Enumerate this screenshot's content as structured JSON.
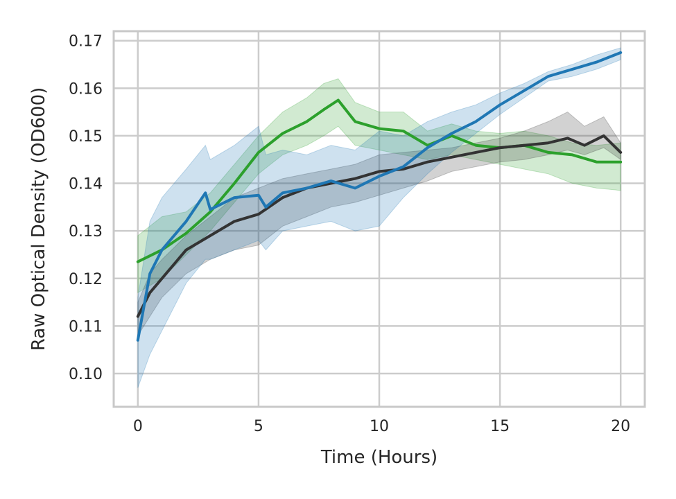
{
  "chart_data": {
    "type": "line",
    "title": "",
    "xlabel": "Time (Hours)",
    "ylabel": "Raw Optical Density (OD600)",
    "xlim": [
      -1,
      21
    ],
    "ylim": [
      0.093,
      0.172
    ],
    "xticks": [
      0,
      5,
      10,
      15,
      20
    ],
    "xtick_labels": [
      "0",
      "5",
      "10",
      "15",
      "20"
    ],
    "yticks": [
      0.1,
      0.11,
      0.12,
      0.13,
      0.14,
      0.15,
      0.16,
      0.17
    ],
    "ytick_labels": [
      "0.10",
      "0.11",
      "0.12",
      "0.13",
      "0.14",
      "0.15",
      "0.16",
      "0.17"
    ],
    "grid": true,
    "legend": "none",
    "series": [
      {
        "color": "#2ca02c",
        "x": [
          0,
          1,
          2,
          3,
          4,
          5,
          6,
          7,
          7.7,
          8.3,
          9,
          10,
          11,
          12,
          13,
          14,
          15,
          16,
          17,
          18,
          19,
          20
        ],
        "y": [
          0.1235,
          0.126,
          0.1295,
          0.134,
          0.14,
          0.1465,
          0.1505,
          0.153,
          0.1555,
          0.1575,
          0.153,
          0.1515,
          0.151,
          0.148,
          0.15,
          0.148,
          0.1475,
          0.148,
          0.1465,
          0.146,
          0.1445,
          0.1445
        ],
        "lower": [
          0.117,
          0.12,
          0.125,
          0.13,
          0.136,
          0.142,
          0.146,
          0.148,
          0.15,
          0.152,
          0.148,
          0.147,
          0.146,
          0.145,
          0.146,
          0.145,
          0.144,
          0.143,
          0.142,
          0.14,
          0.139,
          0.1385
        ],
        "upper": [
          0.129,
          0.133,
          0.134,
          0.138,
          0.144,
          0.15,
          0.155,
          0.158,
          0.161,
          0.162,
          0.157,
          0.155,
          0.155,
          0.151,
          0.1525,
          0.151,
          0.1505,
          0.151,
          0.15,
          0.1485,
          0.148,
          0.1485
        ]
      },
      {
        "color": "#333333",
        "x": [
          0,
          0.5,
          1,
          2,
          3,
          4,
          5,
          6,
          7,
          8,
          9,
          10,
          11,
          12,
          13,
          14,
          15,
          16,
          17,
          17.8,
          18.5,
          19.3,
          20
        ],
        "y": [
          0.112,
          0.117,
          0.12,
          0.126,
          0.129,
          0.132,
          0.1335,
          0.137,
          0.139,
          0.14,
          0.141,
          0.1425,
          0.143,
          0.1445,
          0.1455,
          0.1465,
          0.1475,
          0.148,
          0.1485,
          0.1495,
          0.148,
          0.15,
          0.1465
        ],
        "lower": [
          0.108,
          0.112,
          0.116,
          0.121,
          0.124,
          0.126,
          0.127,
          0.131,
          0.133,
          0.135,
          0.136,
          0.1375,
          0.139,
          0.1405,
          0.1425,
          0.1435,
          0.1445,
          0.145,
          0.146,
          0.147,
          0.146,
          0.1475,
          0.145
        ],
        "upper": [
          0.115,
          0.121,
          0.124,
          0.129,
          0.133,
          0.137,
          0.139,
          0.141,
          0.142,
          0.143,
          0.144,
          0.146,
          0.1465,
          0.147,
          0.1475,
          0.1485,
          0.1495,
          0.151,
          0.153,
          0.155,
          0.152,
          0.154,
          0.1485
        ]
      },
      {
        "color": "#1f77b4",
        "x": [
          0,
          0.5,
          1,
          2,
          2.8,
          3,
          4,
          5,
          5.3,
          6,
          7,
          8,
          9,
          10,
          11,
          12,
          13,
          14,
          15,
          16,
          17,
          18,
          19,
          20
        ],
        "y": [
          0.107,
          0.121,
          0.126,
          0.132,
          0.138,
          0.1345,
          0.137,
          0.1375,
          0.135,
          0.138,
          0.139,
          0.1405,
          0.139,
          0.1415,
          0.1435,
          0.1475,
          0.1505,
          0.153,
          0.1565,
          0.1595,
          0.1625,
          0.164,
          0.1655,
          0.1675
        ],
        "lower": [
          0.097,
          0.104,
          0.109,
          0.119,
          0.124,
          0.124,
          0.126,
          0.128,
          0.126,
          0.13,
          0.131,
          0.132,
          0.13,
          0.131,
          0.137,
          0.142,
          0.1465,
          0.1505,
          0.1545,
          0.158,
          0.1615,
          0.1625,
          0.164,
          0.166
        ],
        "upper": [
          0.116,
          0.132,
          0.137,
          0.143,
          0.148,
          0.145,
          0.148,
          0.152,
          0.146,
          0.147,
          0.146,
          0.148,
          0.147,
          0.151,
          0.15,
          0.153,
          0.155,
          0.1565,
          0.159,
          0.161,
          0.1635,
          0.165,
          0.167,
          0.1685
        ]
      }
    ]
  }
}
